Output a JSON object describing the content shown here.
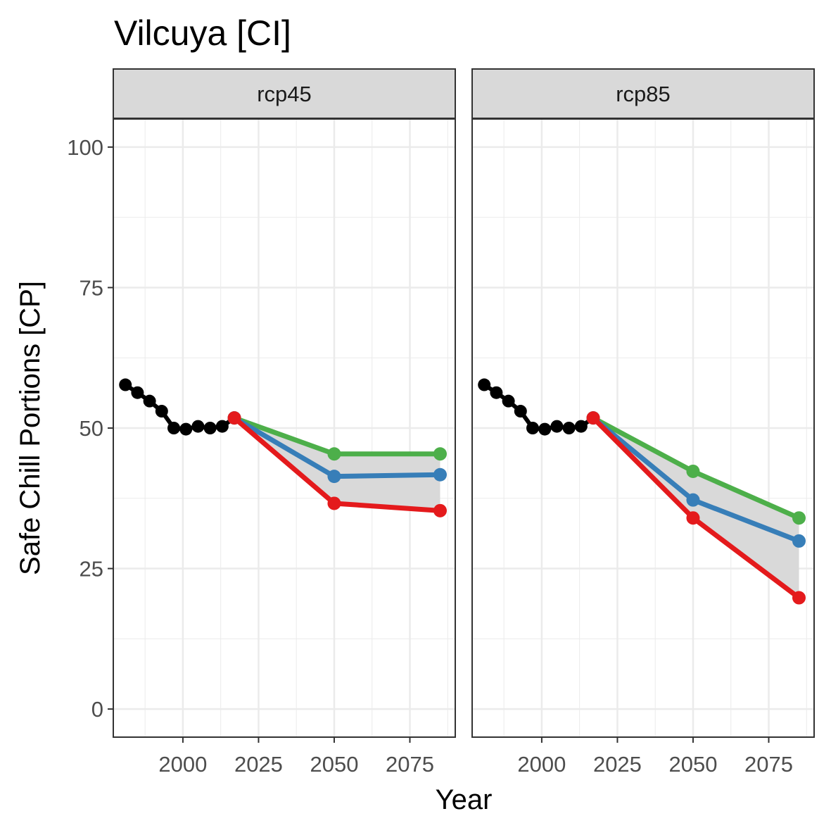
{
  "chart_data": {
    "type": "line",
    "title": "Vilcuya [CI]",
    "xlabel": "Year",
    "ylabel": "Safe Chill Portions [CP]",
    "xlim": [
      1977,
      2090
    ],
    "ylim": [
      -5,
      105
    ],
    "x_ticks": [
      2000,
      2025,
      2050,
      2075
    ],
    "y_ticks": [
      0,
      25,
      50,
      75,
      100
    ],
    "grid": true,
    "colors": {
      "historic": "#000000",
      "optimistic": "#4daf4a",
      "intermediate": "#377eb8",
      "pessimistic": "#e41a1c",
      "ribbon": "#d9d9d9"
    },
    "panels": [
      {
        "strip": "rcp45",
        "historic": {
          "x": [
            1981,
            1985,
            1989,
            1993,
            1997,
            2001,
            2005,
            2009,
            2013,
            2017
          ],
          "y": [
            57.7,
            56.3,
            54.8,
            53.0,
            50.0,
            49.8,
            50.3,
            50.0,
            50.3,
            51.8
          ]
        },
        "ribbon": {
          "x": [
            2017,
            2050,
            2085
          ],
          "ymin": [
            51.8,
            36.6,
            35.3
          ],
          "ymax": [
            51.8,
            45.4,
            45.4
          ]
        },
        "series": [
          {
            "key": "optimistic",
            "x": [
              2017,
              2050,
              2085
            ],
            "y": [
              51.8,
              45.4,
              45.4
            ]
          },
          {
            "key": "intermediate",
            "x": [
              2017,
              2050,
              2085
            ],
            "y": [
              51.8,
              41.4,
              41.7
            ]
          },
          {
            "key": "pessimistic",
            "x": [
              2017,
              2050,
              2085
            ],
            "y": [
              51.8,
              36.6,
              35.3
            ]
          }
        ]
      },
      {
        "strip": "rcp85",
        "historic": {
          "x": [
            1981,
            1985,
            1989,
            1993,
            1997,
            2001,
            2005,
            2009,
            2013,
            2017
          ],
          "y": [
            57.7,
            56.3,
            54.8,
            53.0,
            50.0,
            49.8,
            50.3,
            50.0,
            50.3,
            51.8
          ]
        },
        "ribbon": {
          "x": [
            2017,
            2050,
            2085
          ],
          "ymin": [
            51.8,
            34.0,
            19.8
          ],
          "ymax": [
            51.8,
            42.3,
            34.0
          ]
        },
        "series": [
          {
            "key": "optimistic",
            "x": [
              2017,
              2050,
              2085
            ],
            "y": [
              51.8,
              42.3,
              34.0
            ]
          },
          {
            "key": "intermediate",
            "x": [
              2017,
              2050,
              2085
            ],
            "y": [
              51.8,
              37.2,
              29.9
            ]
          },
          {
            "key": "pessimistic",
            "x": [
              2017,
              2050,
              2085
            ],
            "y": [
              51.8,
              34.0,
              19.8
            ]
          }
        ]
      }
    ]
  }
}
